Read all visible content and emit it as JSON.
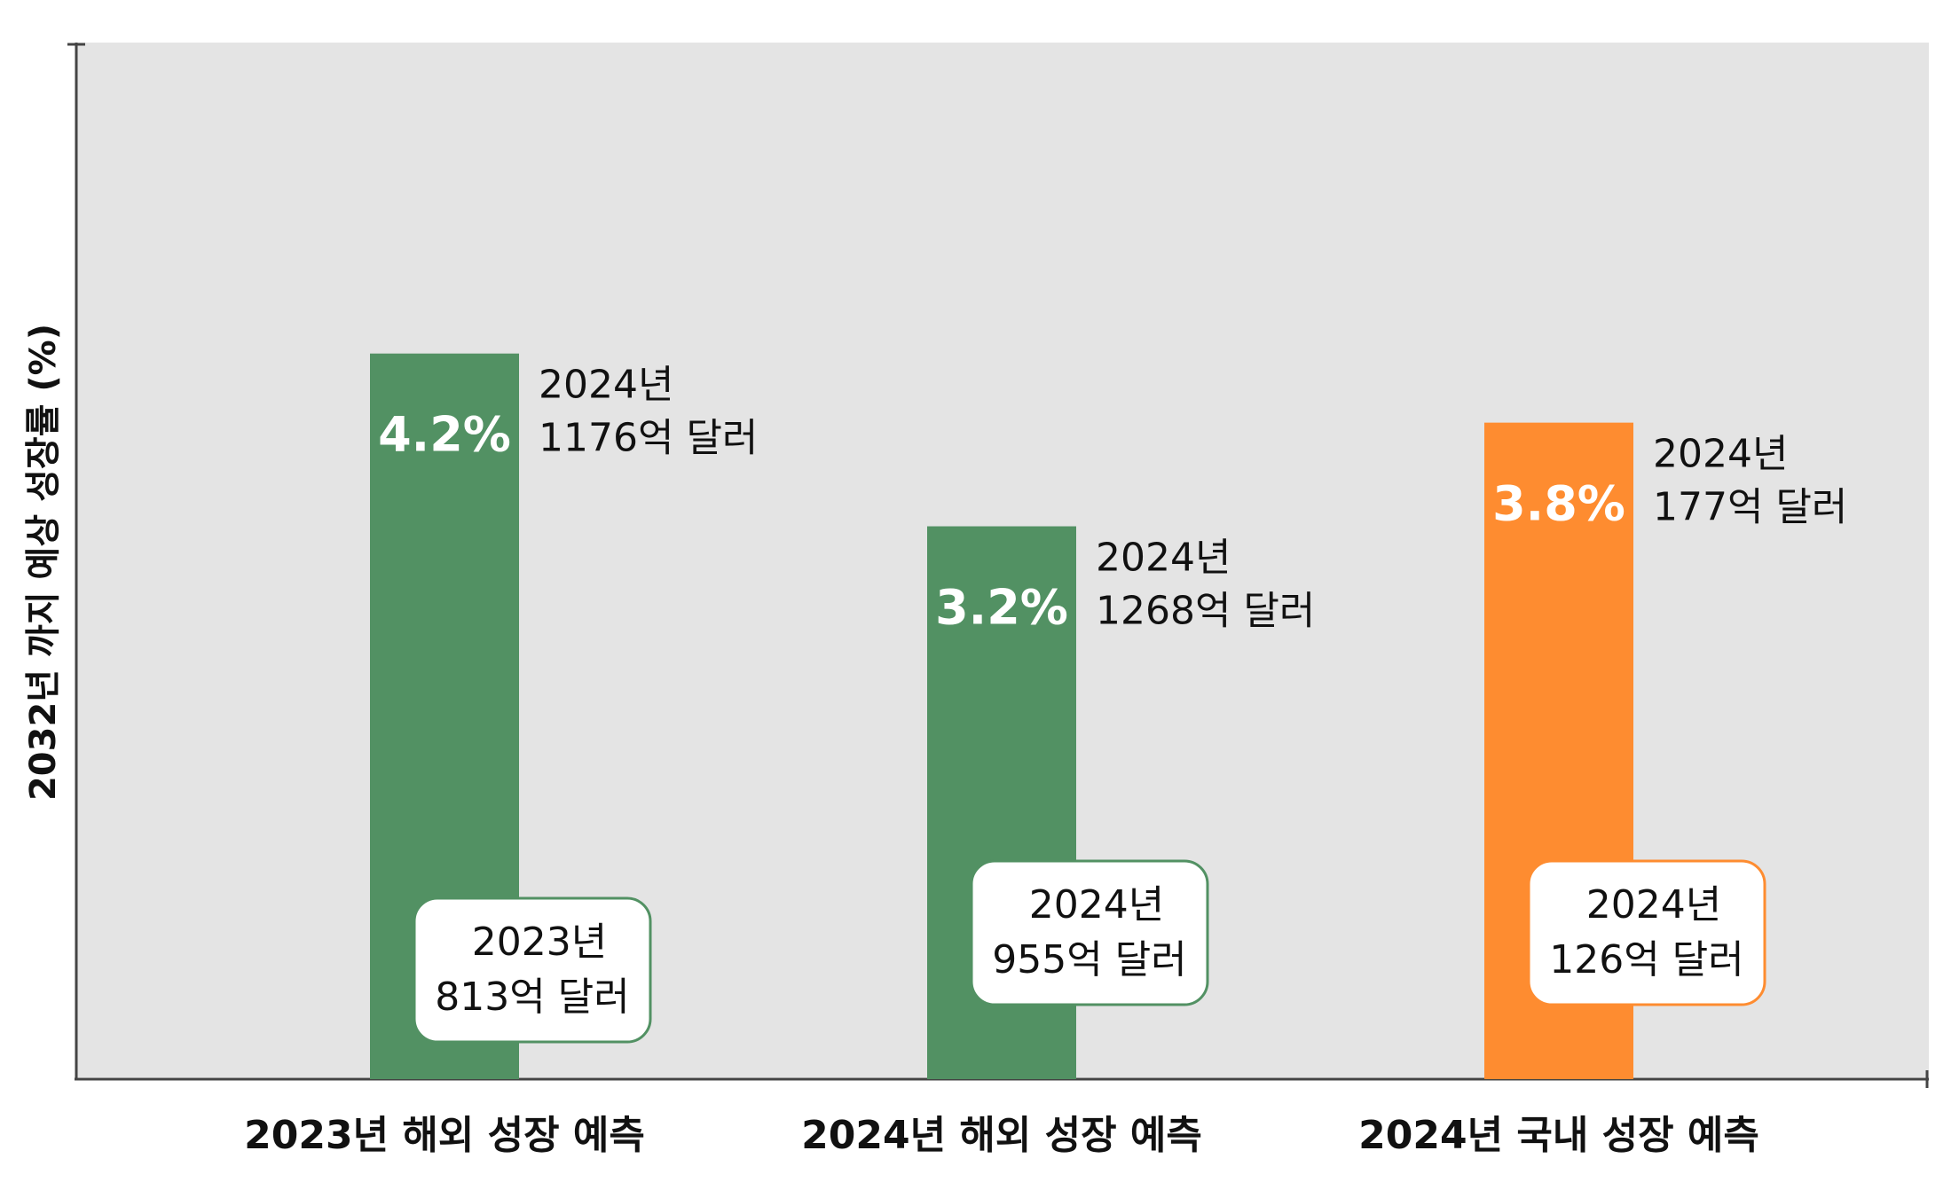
{
  "chart_data": {
    "type": "bar",
    "title": "",
    "ylabel": "2032년 까지 예상 성장률 (%)",
    "xlabel": "",
    "ylim": [
      0,
      6
    ],
    "grid": false,
    "categories": [
      "2023년 해외 성장 예측",
      "2024년 해외 성장 예측",
      "2024년 국내 성장 예측"
    ],
    "values": [
      4.2,
      3.2,
      3.8
    ],
    "value_labels": [
      "4.2%",
      "3.2%",
      "3.8%"
    ],
    "colors": [
      "#529163",
      "#529163",
      "#fe8c30"
    ],
    "annotations_right": [
      {
        "line1": "2024년",
        "line2": "1176억 달러"
      },
      {
        "line1": "2024년",
        "line2": "1268억 달러"
      },
      {
        "line1": "2024년",
        "line2": "177억 달러"
      }
    ],
    "annotations_box": [
      {
        "line1": "2023년",
        "line2": "813억 달러"
      },
      {
        "line1": "2024년",
        "line2": "955억 달러"
      },
      {
        "line1": "2024년",
        "line2": "126억 달러"
      }
    ]
  }
}
